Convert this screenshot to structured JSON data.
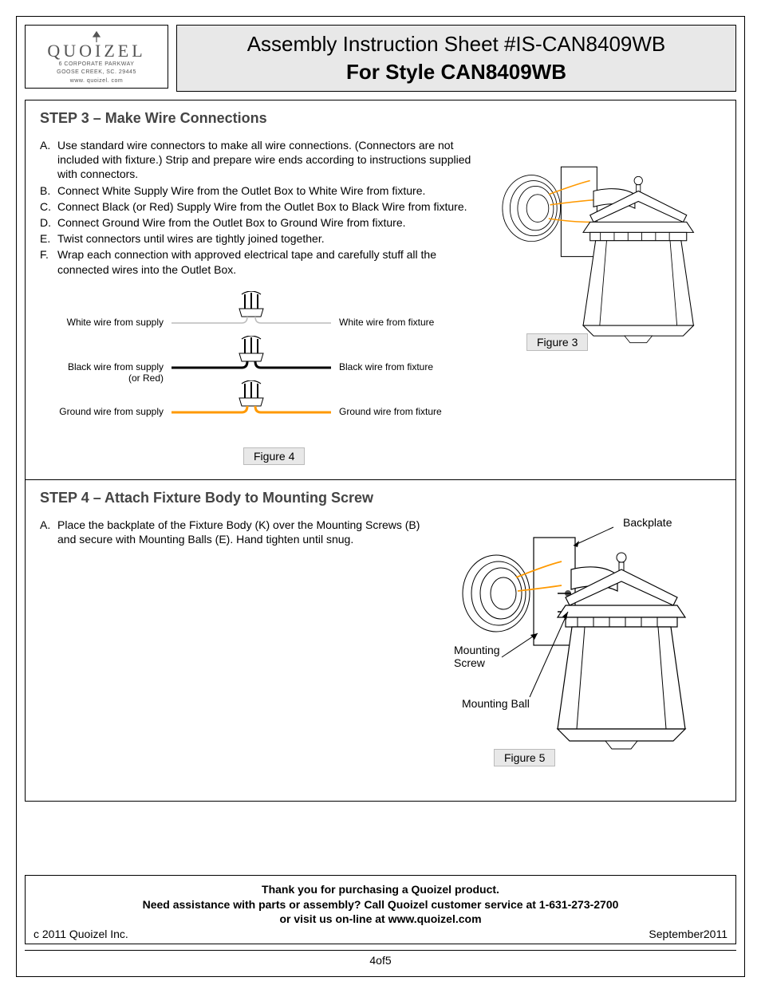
{
  "logo": {
    "brand": "QUOIZEL",
    "addr1": "6 CORPORATE PARKWAY",
    "addr2": "GOOSE CREEK, SC. 29445",
    "addr3": "www. quoizel. com"
  },
  "title": {
    "line1": "Assembly Instruction Sheet #IS-CAN8409WB",
    "line2": "For Style CAN8409WB"
  },
  "step3": {
    "heading": "STEP 3 – Make Wire Connections",
    "items": [
      {
        "l": "A.",
        "t": "Use standard wire connectors to make all wire connections. (Connectors are not included with fixture.) Strip and prepare wire ends according to instructions supplied with connectors."
      },
      {
        "l": "B.",
        "t": "Connect White Supply Wire from the Outlet Box to White Wire from fixture."
      },
      {
        "l": "C.",
        "t": "Connect Black (or Red) Supply Wire from the Outlet Box to Black Wire from fixture."
      },
      {
        "l": "D.",
        "t": "Connect Ground Wire from the Outlet Box to Ground Wire from fixture."
      },
      {
        "l": "E.",
        "t": "Twist connectors until wires are tightly joined together."
      },
      {
        "l": "F.",
        "t": "Wrap each connection with approved electrical tape and carefully stuff all the connected wires into the Outlet Box."
      }
    ],
    "figure_caption": "Figure 3"
  },
  "wires": {
    "rows": [
      {
        "left": "White wire from supply",
        "right": "White wire from fixture",
        "sub": "",
        "color": "#bbbbbb",
        "stroke": 1.5
      },
      {
        "left": "Black wire from supply",
        "right": "Black wire from fixture",
        "sub": "(or Red)",
        "color": "#000000",
        "stroke": 3
      },
      {
        "left": "Ground wire from supply",
        "right": "Ground wire from fixture",
        "sub": "",
        "color": "#ff9900",
        "stroke": 3
      }
    ],
    "caption": "Figure 4"
  },
  "step4": {
    "heading": "STEP 4 – Attach Fixture Body to Mounting Screw",
    "heading_indent": "Screw",
    "items": [
      {
        "l": "A.",
        "t": "Place the backplate of the Fixture Body (K) over the Mounting Screws (B) and secure with Mounting Balls (E). Hand tighten until snug."
      }
    ],
    "callouts": {
      "backplate": "Backplate",
      "mounting_screw": "Mounting\nScrew",
      "mounting_ball": "Mounting Ball"
    },
    "figure_caption": "Figure 5"
  },
  "footer": {
    "thanks": "Thank you for purchasing a Quoizel product.",
    "assist": "Need assistance with parts or assembly? Call Quoizel customer service at 1-631-273-2700",
    "visit": "or visit us on-line at www.quoizel.com",
    "copyright": "c 2011 Quoizel Inc.",
    "date": "September2011",
    "page": "4of5"
  },
  "colors": {
    "wire_orange": "#ff9900",
    "panel_bg": "#e8e8e8"
  }
}
